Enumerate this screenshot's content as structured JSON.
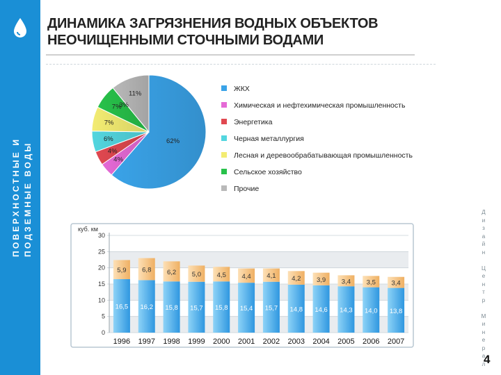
{
  "header": {
    "title_line1": "ДИНАМИКА ЗАГРЯЗНЕНИЯ ВОДНЫХ ОБЪЕКТОВ",
    "title_line2": "НЕОЧИЩЕННЫМИ СТОЧНЫМИ ВОДАМИ"
  },
  "sidebar": {
    "line1": "ПОВЕРХНОСТНЫЕ И",
    "line2": "ПОДЗЕМНЫЕ ВОДЫ",
    "icon": "water-drop-icon",
    "color": "#1a8fd6"
  },
  "right_edge_text": "Дизайн Центр Минерал",
  "page_number": "4",
  "chart_data": [
    {
      "type": "pie",
      "slices": [
        {
          "label": "ЖКХ",
          "value": 62,
          "value_label": "62%",
          "color": "#3aa3e8"
        },
        {
          "label": "Химическая и нефтехимическая промышленность",
          "value": 4,
          "value_label": "4%",
          "color": "#e56ad6"
        },
        {
          "label": "Энергетика",
          "value": 4,
          "value_label": "4%",
          "color": "#e04850"
        },
        {
          "label": "Черная металлургия",
          "value": 6,
          "value_label": "6%",
          "color": "#53d6df"
        },
        {
          "label": "Лесная и деревообрабатывающая промышленность",
          "value": 7,
          "value_label": "7%",
          "color": "#f3ec72"
        },
        {
          "label": "Сельское хозяйство",
          "value": 7,
          "value_label": "7%",
          "color": "#28c14a"
        },
        {
          "label": "Прочие",
          "value": 11,
          "value_label": "11%",
          "color": "#b9b9b9"
        }
      ],
      "extra_label": "3%",
      "legend_position": "right"
    },
    {
      "type": "bar",
      "stacked": true,
      "ylabel": "куб. км",
      "ylim": [
        0,
        30
      ],
      "yticks": [
        "0",
        "5",
        "10",
        "15",
        "20",
        "25",
        "30"
      ],
      "categories": [
        "1996",
        "1997",
        "1998",
        "1999",
        "2000",
        "2001",
        "2002",
        "2003",
        "2004",
        "2005",
        "2006",
        "2007"
      ],
      "series": [
        {
          "values": [
            16.5,
            16.2,
            15.8,
            15.7,
            15.8,
            15.4,
            15.7,
            14.8,
            14.6,
            14.3,
            14.0,
            13.8
          ],
          "labels": [
            "16,5",
            "16,2",
            "15,8",
            "15,7",
            "15,8",
            "15,4",
            "15,7",
            "14,8",
            "14,6",
            "14,3",
            "14,0",
            "13,8"
          ],
          "color": "#5ab8ee"
        },
        {
          "values": [
            5.9,
            6.8,
            6.2,
            5.0,
            4.5,
            4.4,
            4.1,
            4.2,
            3.9,
            3.4,
            3.5,
            3.4
          ],
          "labels": [
            "5,9",
            "6,8",
            "6,2",
            "5,0",
            "4,5",
            "4,4",
            "4,1",
            "4,2",
            "3,9",
            "3,4",
            "3,5",
            "3,4"
          ],
          "color": "#f7c588"
        }
      ],
      "grid": "horizontal bands"
    }
  ]
}
